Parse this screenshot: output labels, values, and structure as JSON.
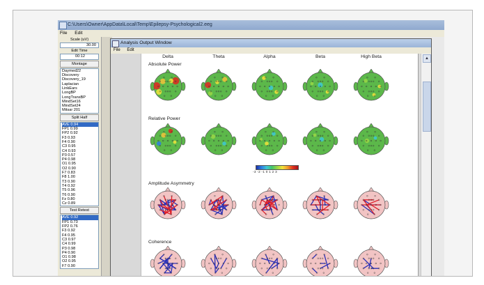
{
  "main_window": {
    "title": "C:\\Users\\Owner\\AppData\\Local\\Temp\\Epilepsy-Psychological2.eeg",
    "menu": [
      "File",
      "Edit"
    ]
  },
  "control_panel": {
    "scale_label": "Scale (uV)",
    "scale_value": "30.00",
    "edit_time_label": "Edit Time",
    "edit_time_value": "00:12",
    "montage_button": "Montage",
    "montages": [
      "Daymed22",
      "Discovery",
      "Discovery_19",
      "Laplacian",
      "LinkEars",
      "LongBP",
      "LongTransBP",
      "MindSet16",
      "MindSet24",
      "Mitsar 201"
    ],
    "split_half_button": "Split Half",
    "split_half_values": [
      "AVE 0.94",
      "FP1 0.99",
      "FP2 0.92",
      "F3 0.93",
      "F4 0.90",
      "C3 0.95",
      "C4 0.93",
      "P3 0.57",
      "P4 0.98",
      "O1 0.95",
      "O2 0.90",
      "F7 0.83",
      "F8 1.00",
      "T3 0.90",
      "T4 0.92",
      "T5 0.96",
      "T6 0.90",
      "Fz 0.80",
      "Cz 0.89"
    ],
    "test_retest_button": "Test Retest",
    "test_retest_values": [
      "AVE 0.92",
      "FP1 0.73",
      "FP2 0.76",
      "F3 0.92",
      "F4 0.95",
      "C3 0.97",
      "C4 0.99",
      "P3 0.98",
      "P4 0.90",
      "O1 0.98",
      "O2 0.95",
      "F7 0.90"
    ]
  },
  "analysis_window": {
    "title": "Analysis Output Window",
    "menu": [
      "File",
      "Edit"
    ],
    "band_labels": [
      "Delta",
      "Theta",
      "Alpha",
      "Beta",
      "High Beta"
    ],
    "sections": [
      {
        "title": "Absolute Power"
      },
      {
        "title": "Relative Power"
      },
      {
        "title": "Amplitude Asymmetry"
      },
      {
        "title": "Coherence"
      }
    ],
    "colorbar_ticks": "-3 -2 -1 0 1 2 3"
  },
  "colors": {
    "map_base": "#5cb84a",
    "connectivity_blue": "#2a2fb8",
    "connectivity_red": "#e0202a",
    "head_pink": "#f2c4c4"
  }
}
